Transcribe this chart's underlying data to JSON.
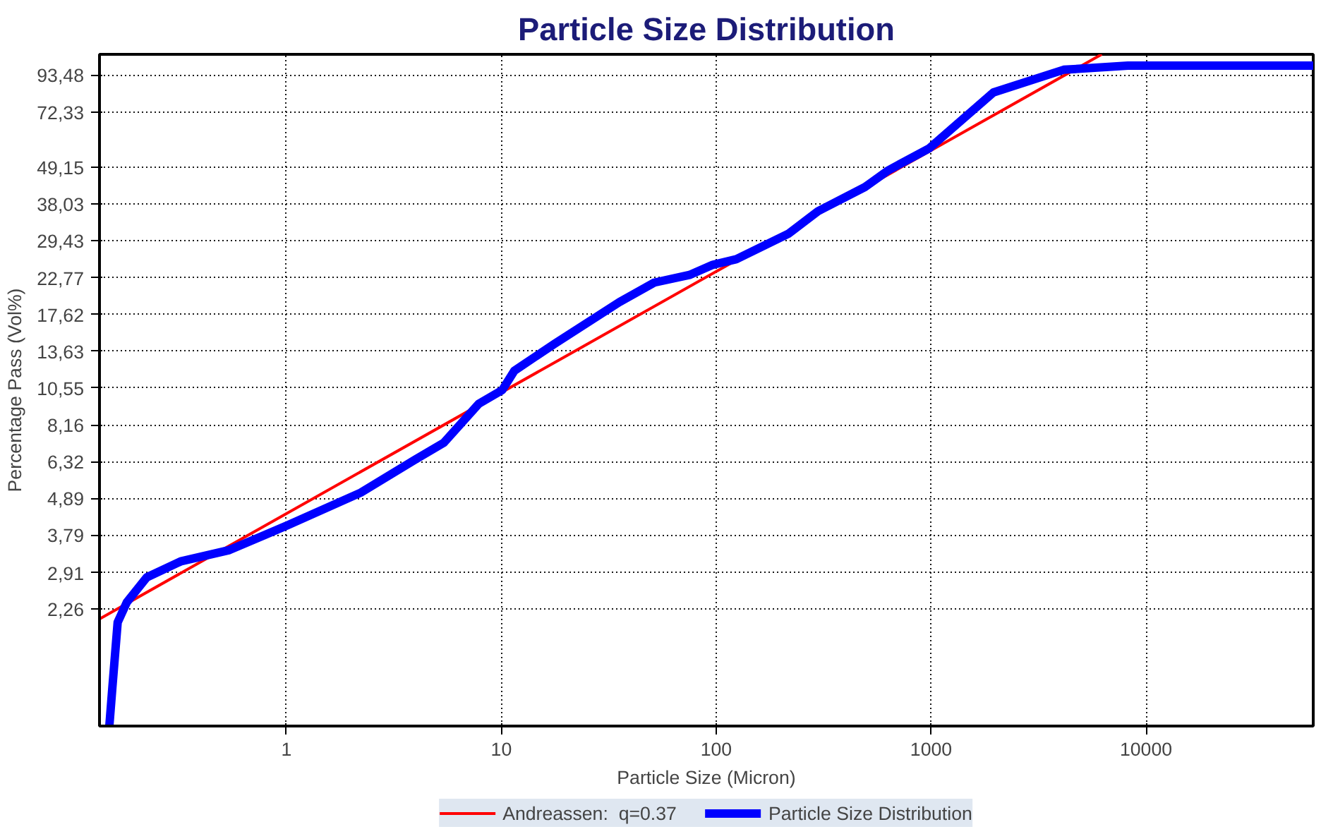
{
  "chart_data": {
    "type": "line",
    "title": "Particle Size Distribution",
    "xlabel": "Particle Size (Micron)",
    "ylabel": "Percentage Pass (Vol%)",
    "log": "xy",
    "grid": true,
    "legend": "bottom",
    "marker": "none",
    "line_style": "solid",
    "xlim": [
      0.135,
      60000
    ],
    "ylim": [
      1,
      108
    ],
    "xticks": [
      1,
      10,
      100,
      1000,
      10000
    ],
    "yticks": [
      {
        "value": 2.26,
        "label": "2,26"
      },
      {
        "value": 2.91,
        "label": "2,91"
      },
      {
        "value": 3.79,
        "label": "3,79"
      },
      {
        "value": 4.89,
        "label": "4,89"
      },
      {
        "value": 6.32,
        "label": "6,32"
      },
      {
        "value": 8.16,
        "label": "8,16"
      },
      {
        "value": 10.55,
        "label": "10,55"
      },
      {
        "value": 13.63,
        "label": "13,63"
      },
      {
        "value": 17.62,
        "label": "17,62"
      },
      {
        "value": 22.77,
        "label": "22,77"
      },
      {
        "value": 29.43,
        "label": "29,43"
      },
      {
        "value": 38.03,
        "label": "38,03"
      },
      {
        "value": 49.15,
        "label": "49,15"
      },
      {
        "value": 72.33,
        "label": "72,33"
      },
      {
        "value": 93.48,
        "label": "93,48"
      }
    ],
    "series": [
      {
        "name": "Andreassen:  q=0.37",
        "color": "#ff0000",
        "x": [
          0.135,
          6220
        ],
        "values": [
          2.11,
          108
        ]
      },
      {
        "name": "Particle Size Distribution",
        "color": "#0000ff",
        "x": [
          0.15,
          0.155,
          0.164,
          0.181,
          0.224,
          0.322,
          0.543,
          1.02,
          2.22,
          3.95,
          5.41,
          7.87,
          10.1,
          11.5,
          17.8,
          35.4,
          51.5,
          75.1,
          96.4,
          124,
          218,
          298,
          492,
          632,
          980,
          1950,
          4140,
          8240,
          60000
        ],
        "values": [
          1.0,
          1.31,
          2.06,
          2.37,
          2.82,
          3.15,
          3.41,
          4.06,
          5.09,
          6.39,
          7.21,
          9.46,
          10.4,
          11.9,
          14.4,
          19.2,
          22.0,
          23.2,
          24.9,
          25.9,
          31.0,
          36.2,
          42.8,
          48.1,
          56.1,
          82.8,
          97.0,
          99.8,
          99.8
        ]
      }
    ]
  }
}
